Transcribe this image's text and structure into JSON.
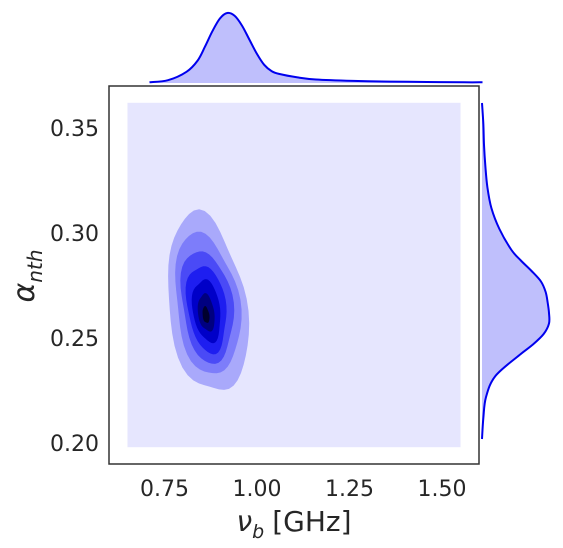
{
  "chart_data": {
    "type": "kde-jointplot",
    "xlabel_main": "ν",
    "xlabel_sub": "b",
    "xlabel_unit": "[GHz]",
    "ylabel_main": "α",
    "ylabel_sub": "nth",
    "xlim": [
      0.6,
      1.6
    ],
    "ylim": [
      0.19,
      0.37
    ],
    "xticks": [
      "0.75",
      "1.00",
      "1.25",
      "1.50"
    ],
    "xtick_values": [
      0.75,
      1.0,
      1.25,
      1.5
    ],
    "yticks": [
      "0.20",
      "0.25",
      "0.30",
      "0.35"
    ],
    "ytick_values": [
      0.2,
      0.25,
      0.3,
      0.35
    ],
    "grid": false,
    "joint": {
      "fill_range_x": [
        0.65,
        1.55
      ],
      "fill_range_y": [
        0.198,
        0.362
      ],
      "peak": {
        "x": 0.865,
        "y": 0.262
      },
      "contour_levels": [
        {
          "cx": 0.865,
          "cy": 0.266,
          "rx": 0.105,
          "ry": 0.043,
          "color": "#a9a9fb"
        },
        {
          "cx": 0.865,
          "cy": 0.266,
          "rx": 0.085,
          "ry": 0.034,
          "color": "#7d7dfa"
        },
        {
          "cx": 0.865,
          "cy": 0.265,
          "rx": 0.068,
          "ry": 0.027,
          "color": "#4a4af6"
        },
        {
          "cx": 0.864,
          "cy": 0.264,
          "rx": 0.052,
          "ry": 0.021,
          "color": "#1e1ef0"
        },
        {
          "cx": 0.864,
          "cy": 0.263,
          "rx": 0.037,
          "ry": 0.015,
          "color": "#0000c8"
        },
        {
          "cx": 0.863,
          "cy": 0.262,
          "rx": 0.022,
          "ry": 0.009,
          "color": "#000080"
        },
        {
          "cx": 0.862,
          "cy": 0.261,
          "rx": 0.009,
          "ry": 0.004,
          "color": "#00002e"
        }
      ]
    },
    "marginal_x": {
      "x": [
        0.65,
        0.7,
        0.75,
        0.78,
        0.8,
        0.82,
        0.84,
        0.86,
        0.88,
        0.9,
        0.92,
        0.94,
        0.96,
        0.98,
        1.0,
        1.05,
        1.1,
        1.2,
        1.3,
        1.4,
        1.5,
        1.55
      ],
      "density": [
        0.01,
        0.04,
        0.16,
        0.32,
        0.52,
        0.74,
        0.92,
        1.0,
        0.96,
        0.82,
        0.62,
        0.42,
        0.26,
        0.17,
        0.13,
        0.08,
        0.05,
        0.03,
        0.02,
        0.015,
        0.01,
        0.01
      ]
    },
    "marginal_y": {
      "y": [
        0.2,
        0.21,
        0.22,
        0.23,
        0.24,
        0.245,
        0.25,
        0.255,
        0.26,
        0.265,
        0.27,
        0.275,
        0.28,
        0.285,
        0.29,
        0.3,
        0.31,
        0.32,
        0.33,
        0.34,
        0.35,
        0.36
      ],
      "density": [
        0.0,
        0.02,
        0.06,
        0.2,
        0.56,
        0.76,
        0.92,
        1.0,
        1.0,
        0.98,
        0.95,
        0.88,
        0.74,
        0.58,
        0.44,
        0.26,
        0.14,
        0.08,
        0.05,
        0.03,
        0.02,
        0.0
      ]
    },
    "colors": {
      "line": "#0000ee",
      "fill": "#bfbffc",
      "background_fill": "#e6e6fe",
      "frame": "#333333"
    }
  }
}
